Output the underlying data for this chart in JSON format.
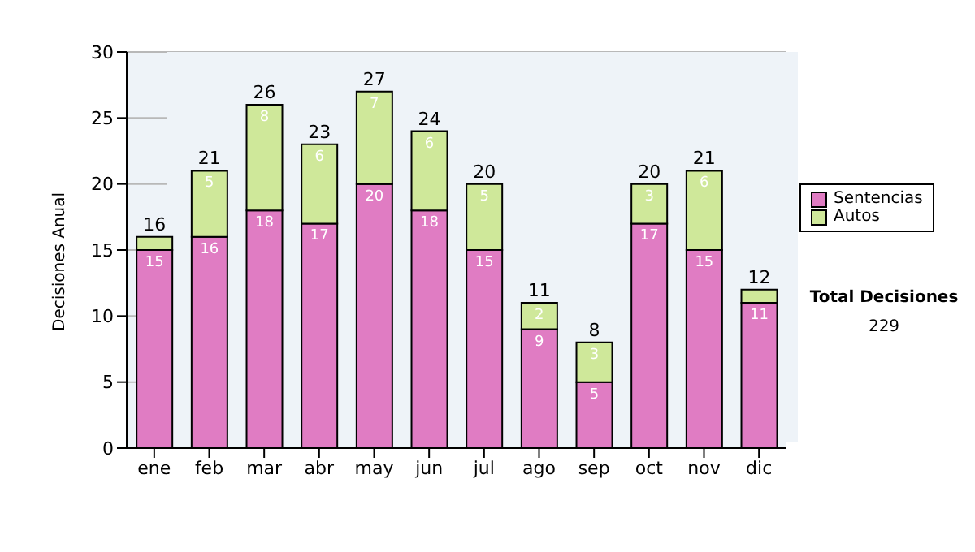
{
  "chart_data": {
    "type": "bar",
    "ylabel": "Decisiones Anual",
    "categories": [
      "ene",
      "feb",
      "mar",
      "abr",
      "may",
      "jun",
      "jul",
      "ago",
      "sep",
      "oct",
      "nov",
      "dic"
    ],
    "series": [
      {
        "name": "Sentencias",
        "color": "#e07cc3",
        "values": [
          15,
          16,
          18,
          17,
          20,
          18,
          15,
          9,
          5,
          17,
          15,
          11
        ],
        "value_labels": [
          "15",
          "16",
          "18",
          "17",
          "20",
          "18",
          "15",
          "9",
          "5",
          "17",
          "15",
          "11"
        ]
      },
      {
        "name": "Autos",
        "color": "#cfe89a",
        "values": [
          1,
          5,
          8,
          6,
          7,
          6,
          5,
          2,
          3,
          3,
          6,
          1
        ],
        "value_labels": [
          null,
          "5",
          "8",
          "6",
          "7",
          "6",
          "5",
          "2",
          "3",
          "3",
          "6",
          null
        ]
      }
    ],
    "stacked": true,
    "totals": [
      "16",
      "21",
      "26",
      "23",
      "27",
      "24",
      "20",
      "11",
      "8",
      "20",
      "21",
      "12"
    ],
    "ylim": [
      0,
      30
    ],
    "yticks": [
      0,
      5,
      10,
      15,
      20,
      25,
      30
    ],
    "grid": "y",
    "legend": "right",
    "annotations": [
      "Total Decisiones",
      "229"
    ]
  }
}
